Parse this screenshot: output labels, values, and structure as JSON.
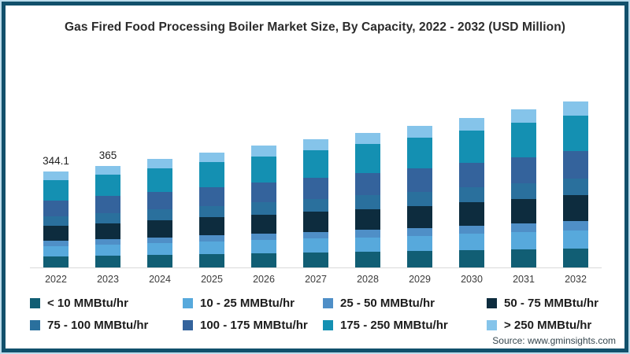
{
  "chart_data": {
    "type": "bar",
    "stacked": true,
    "title": "Gas Fired Food Processing Boiler Market Size, By Capacity, 2022 - 2032 (USD Million)",
    "categories": [
      "2022",
      "2023",
      "2024",
      "2025",
      "2026",
      "2027",
      "2028",
      "2029",
      "2030",
      "2031",
      "2032"
    ],
    "bar_total_labels": [
      "344.1",
      "365",
      "",
      "",
      "",
      "",
      "",
      "",
      "",
      "",
      ""
    ],
    "totals": [
      344.1,
      365,
      388,
      412,
      436,
      459,
      483,
      508,
      537,
      566,
      594
    ],
    "series": [
      {
        "name": "< 10 MMBtu/hr",
        "color": "#115e74",
        "values": [
          39.6,
          42.0,
          44.6,
          47.4,
          50.1,
          52.8,
          55.5,
          58.4,
          61.8,
          65.1,
          68.3
        ]
      },
      {
        "name": "10 - 25 MMBtu/hr",
        "color": "#57a9dc",
        "values": [
          37.9,
          40.2,
          42.7,
          45.3,
          48.0,
          50.5,
          53.1,
          55.9,
          59.1,
          62.3,
          65.3
        ]
      },
      {
        "name": "25 - 50 MMBtu/hr",
        "color": "#4f8fc7",
        "values": [
          18.9,
          20.1,
          21.3,
          22.7,
          24.0,
          25.2,
          26.6,
          27.9,
          29.5,
          31.1,
          32.7
        ]
      },
      {
        "name": "50 - 75 MMBtu/hr",
        "color": "#0d2c3e",
        "values": [
          53.3,
          56.6,
          60.1,
          63.9,
          67.6,
          71.1,
          74.9,
          78.7,
          83.2,
          87.7,
          92.1
        ]
      },
      {
        "name": "75 - 100 MMBtu/hr",
        "color": "#2a709d",
        "values": [
          34.4,
          36.5,
          38.8,
          41.2,
          43.6,
          45.9,
          48.3,
          50.8,
          53.7,
          56.6,
          59.4
        ]
      },
      {
        "name": "100 - 175 MMBtu/hr",
        "color": "#34639c",
        "values": [
          56.8,
          60.2,
          64.0,
          68.0,
          71.9,
          75.7,
          79.7,
          83.8,
          88.6,
          93.4,
          98.0
        ]
      },
      {
        "name": "175 - 250 MMBtu/hr",
        "color": "#1490b2",
        "values": [
          74.0,
          78.5,
          83.4,
          88.6,
          93.7,
          98.7,
          103.8,
          109.2,
          115.5,
          121.7,
          127.7
        ]
      },
      {
        "name": "> 250 MMBtu/hr",
        "color": "#85c4ea",
        "values": [
          29.2,
          31.0,
          33.0,
          35.0,
          37.1,
          39.0,
          41.1,
          43.2,
          45.6,
          48.1,
          50.5
        ]
      }
    ],
    "ylim": [
      0,
      650
    ],
    "grid": false,
    "legend_position": "bottom",
    "frame_colors": {
      "border_dark": "#11506b",
      "border_light": "#bcdcec",
      "axis_line": "#d9d9d9"
    }
  },
  "source": {
    "text": "Source: www.gminsights.com"
  }
}
